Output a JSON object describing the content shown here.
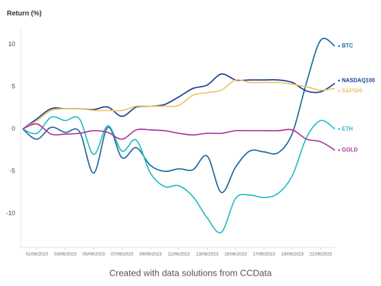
{
  "chart_data": {
    "type": "line",
    "title": "Return (%)",
    "footer": "Created with data solutions from CCData",
    "categories": [
      null,
      "01/06/2023",
      null,
      "03/06/2023",
      null,
      "05/06/2023",
      null,
      "07/06/2023",
      null,
      "09/06/2023",
      null,
      "11/06/2023",
      null,
      "13/06/2023",
      null,
      "15/06/2023",
      null,
      "17/06/2023",
      null,
      "19/06/2023",
      null,
      "21/06/2023",
      null
    ],
    "ylim": [
      -14,
      12
    ],
    "yticks": [
      -10,
      -5,
      0,
      5,
      10
    ],
    "grid": false,
    "series": [
      {
        "name": "BTC",
        "color": "#1f6a9a",
        "values": [
          0,
          -1.2,
          0.2,
          -0.4,
          -0.3,
          -5.2,
          0.2,
          -3.4,
          -2.2,
          -4.3,
          -5,
          -4.7,
          -4.8,
          -3.2,
          -7.5,
          -4.5,
          -2.6,
          -2.7,
          -2.8,
          -0.5,
          5.5,
          10.5,
          9.8
        ]
      },
      {
        "name": "NASDAQ100",
        "color": "#1c3f91",
        "values": [
          0,
          1.2,
          2.4,
          2.4,
          2.4,
          2.3,
          2.6,
          1.5,
          2.6,
          2.7,
          2.9,
          3.8,
          4.8,
          5.2,
          6.5,
          5.8,
          5.8,
          5.8,
          5.8,
          5.5,
          4.5,
          4.4,
          5.4
        ]
      },
      {
        "name": "S&P500",
        "color": "#efc46a",
        "values": [
          0,
          1.0,
          2.2,
          2.4,
          2.4,
          2.2,
          2.2,
          2.2,
          2.7,
          2.7,
          2.7,
          2.8,
          4.0,
          4.3,
          4.6,
          5.8,
          5.5,
          5.5,
          5.5,
          5.3,
          5.0,
          4.6,
          4.8
        ]
      },
      {
        "name": "ETH",
        "color": "#2bbcc4",
        "values": [
          0,
          -0.5,
          1.4,
          1.0,
          1.2,
          -3.0,
          0.4,
          -2.6,
          -1.3,
          -5.2,
          -6.8,
          -6.7,
          -8.0,
          -10.5,
          -12.2,
          -8.2,
          -7.8,
          -8.1,
          -7.6,
          -5.5,
          -1,
          1,
          0
        ]
      },
      {
        "name": "GOLD",
        "color": "#b0379f",
        "values": [
          0,
          0.6,
          -0.6,
          -0.6,
          -0.5,
          -0.2,
          -0.4,
          -1.2,
          -0.1,
          -0.1,
          -0.2,
          -0.5,
          -0.7,
          -0.5,
          -0.5,
          -0.2,
          -0.2,
          -0.2,
          -0.2,
          -0.1,
          -1.2,
          -1.5,
          -2.5
        ]
      }
    ]
  }
}
